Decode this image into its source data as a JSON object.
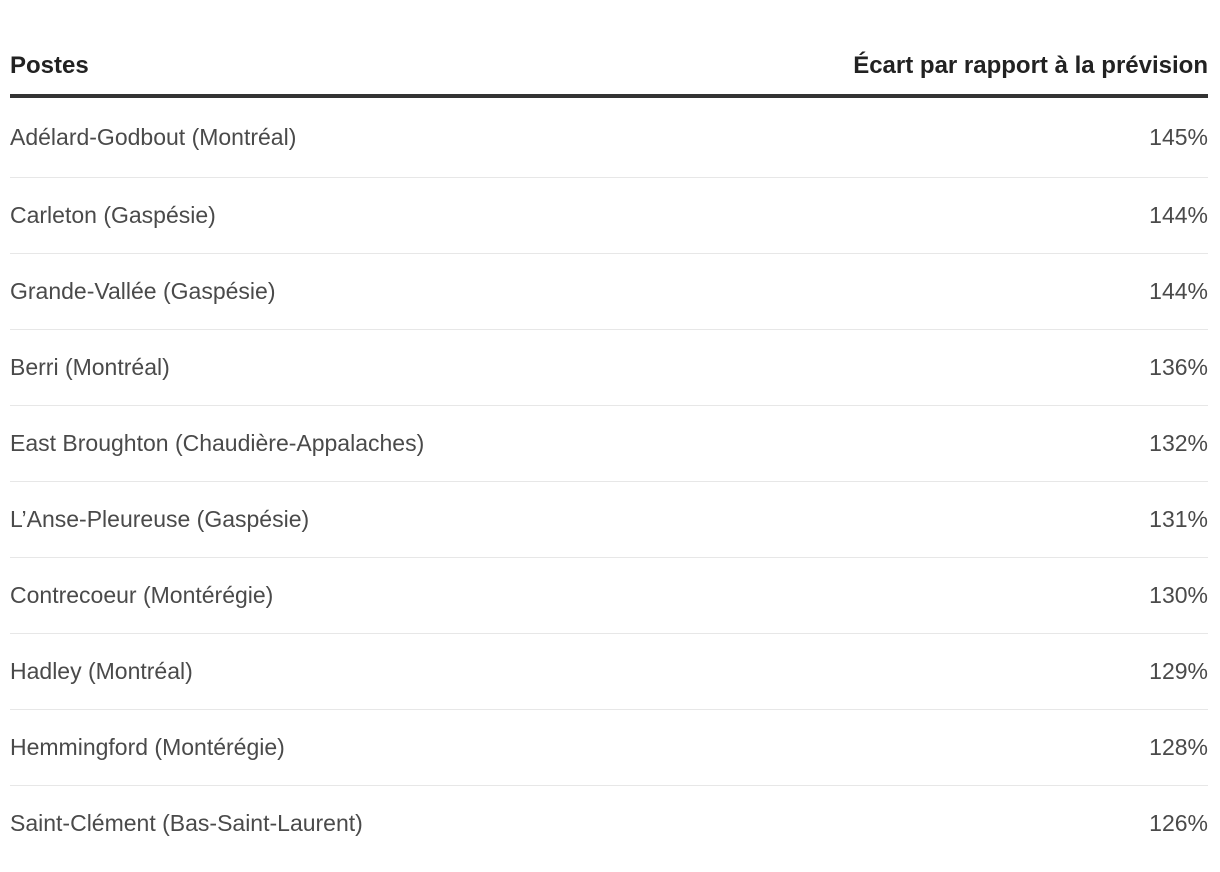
{
  "chart_data": {
    "type": "table",
    "title": "",
    "columns": [
      "Postes",
      "Écart par rapport à la prévision"
    ],
    "rows": [
      {
        "poste": "Adélard-Godbout (Montréal)",
        "ecart": "145%"
      },
      {
        "poste": "Carleton (Gaspésie)",
        "ecart": "144%"
      },
      {
        "poste": "Grande-Vallée (Gaspésie)",
        "ecart": "144%"
      },
      {
        "poste": "Berri (Montréal)",
        "ecart": "136%"
      },
      {
        "poste": "East Broughton (Chaudière-Appalaches)",
        "ecart": "132%"
      },
      {
        "poste": "L’Anse-Pleureuse (Gaspésie)",
        "ecart": "131%"
      },
      {
        "poste": "Contrecoeur (Montérégie)",
        "ecart": "130%"
      },
      {
        "poste": "Hadley (Montréal)",
        "ecart": "129%"
      },
      {
        "poste": "Hemmingford (Montérégie)",
        "ecart": "128%"
      },
      {
        "poste": "Saint-Clément (Bas-Saint-Laurent)",
        "ecart": "126%"
      }
    ],
    "values_percent": [
      145,
      144,
      144,
      136,
      132,
      131,
      130,
      129,
      128,
      126
    ]
  },
  "colors": {
    "header_text": "#222222",
    "header_rule": "#333333",
    "row_text": "#4a4a4a",
    "row_divider": "#e7e7e7",
    "background": "#ffffff"
  }
}
